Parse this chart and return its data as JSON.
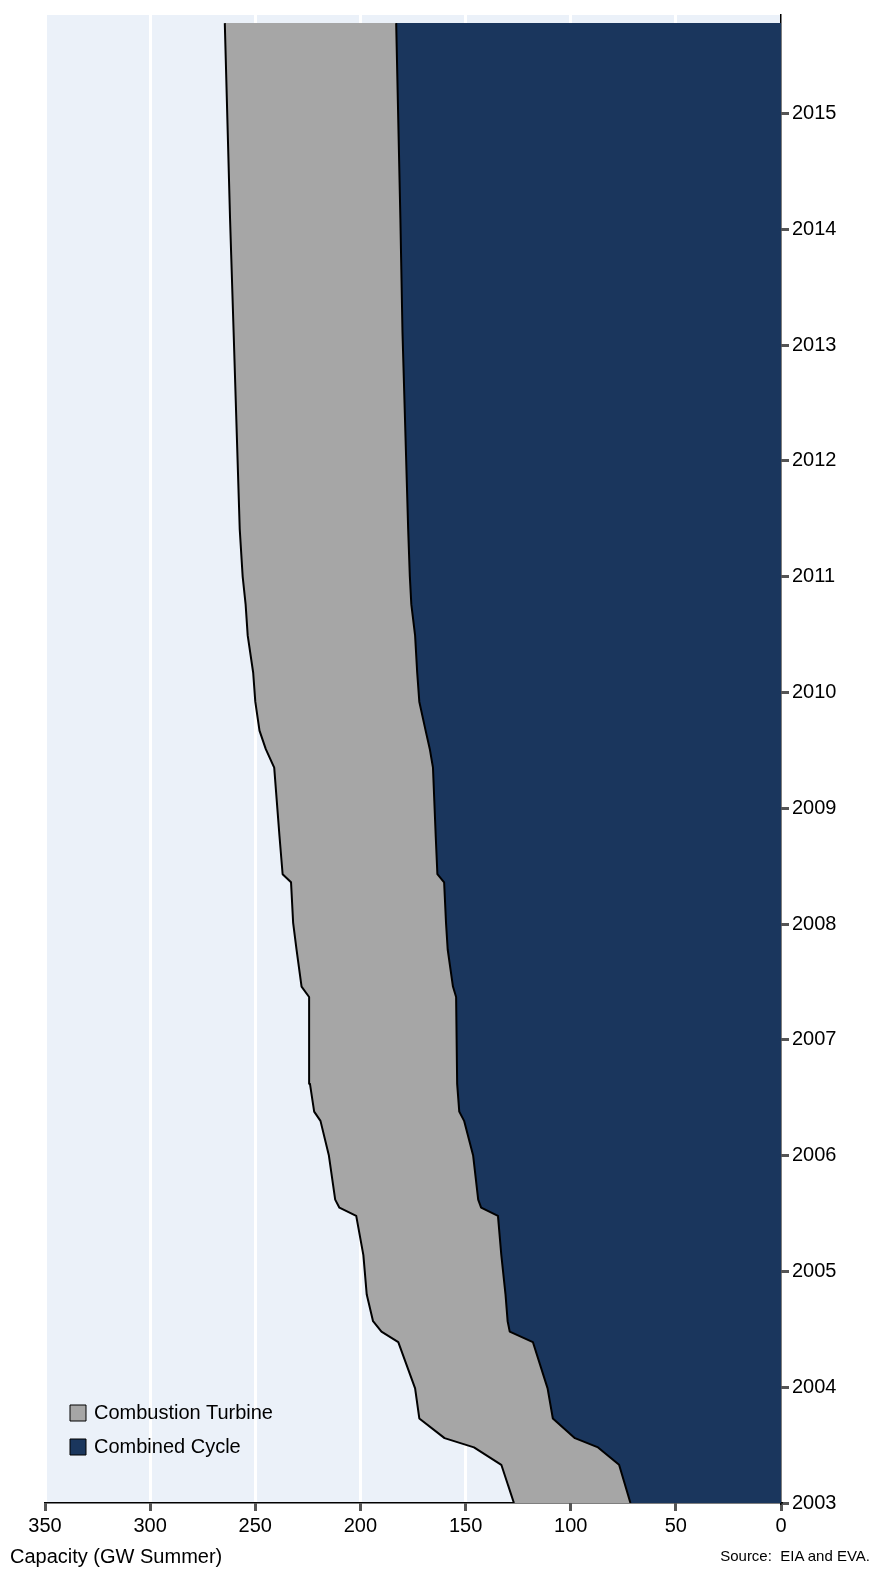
{
  "chart_data": {
    "type": "area",
    "orientation": "horizontal",
    "xlabel": "Capacity (GW Summer)",
    "annotations": [
      "Source:  EIA and EVA."
    ],
    "x": [
      2003.0,
      2003.33,
      2003.48,
      2003.56,
      2003.73,
      2003.99,
      2004.39,
      2004.48,
      2004.57,
      2004.8,
      2005.14,
      2005.48,
      2005.55,
      2005.62,
      2006.0,
      2006.3,
      2006.38,
      2006.62,
      2007.37,
      2007.46,
      2007.78,
      2008.01,
      2008.36,
      2008.43,
      2008.76,
      2009.35,
      2009.51,
      2009.67,
      2009.92,
      2010.17,
      2010.49,
      2010.76,
      2011.0,
      2011.41,
      2013.11,
      2014.09,
      2015.78
    ],
    "series": [
      {
        "name": "Combined Cycle",
        "color": "#1a365d",
        "values": [
          71.6,
          77,
          87,
          98,
          108.5,
          111,
          118,
          129,
          130,
          131,
          133,
          134.6,
          142.6,
          144,
          146.4,
          150.7,
          153,
          154,
          154.5,
          156,
          158.5,
          159.3,
          160.2,
          163.4,
          164.2,
          165.5,
          167,
          169,
          172,
          173,
          174,
          175.8,
          176.5,
          177.3,
          180,
          181,
          183
        ]
      },
      {
        "name": "Combustion Turbine",
        "color": "#a6a6a6",
        "values": [
          55.4,
          56,
          59,
          62,
          63.5,
          63,
          64,
          61,
          64,
          66,
          65.6,
          67.4,
          67.4,
          68,
          68.6,
          68.3,
          69,
          70,
          69.9,
          72,
          71.9,
          72.7,
          72.8,
          73.6,
          74.3,
          75.5,
          78,
          79,
          78,
          78,
          79.6,
          78.8,
          79.5,
          80.1,
          80.3,
          81,
          81.5
        ]
      }
    ],
    "stacked": true,
    "xlim": [
      350,
      0
    ],
    "xticks": [
      0,
      50,
      100,
      150,
      200,
      250,
      300,
      350
    ],
    "ylim": [
      2003,
      2015.85
    ],
    "yticks": [
      2003,
      2004,
      2005,
      2006,
      2007,
      2008,
      2009,
      2010,
      2011,
      2012,
      2013,
      2014,
      2015
    ],
    "grid": "x",
    "legend": "bottom left"
  }
}
